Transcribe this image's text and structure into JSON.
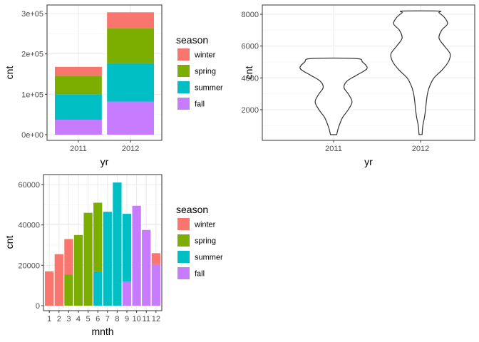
{
  "colors": {
    "winter": "#F8766D",
    "spring": "#7CAE00",
    "summer": "#00BFC4",
    "fall": "#C77CFF"
  },
  "chart_data": [
    {
      "type": "bar",
      "stacked": true,
      "xlabel": "yr",
      "ylabel": "cnt",
      "categories": [
        "2011",
        "2012"
      ],
      "ylim": [
        0,
        325000
      ],
      "yticks": [
        0,
        100000,
        200000,
        300000
      ],
      "ytick_labels": [
        "0e+00",
        "1e+05",
        "2e+05",
        "3e+05"
      ],
      "legend": {
        "title": "season",
        "position": "right"
      },
      "series": [
        {
          "name": "winter",
          "values": [
            22000,
            40000
          ]
        },
        {
          "name": "spring",
          "values": [
            46000,
            86000
          ]
        },
        {
          "name": "summer",
          "values": [
            63000,
            95000
          ]
        },
        {
          "name": "fall",
          "values": [
            37000,
            82000
          ]
        }
      ],
      "grid": true
    },
    {
      "type": "violin",
      "xlabel": "yr",
      "ylabel": "cnt",
      "categories": [
        "2011",
        "2012"
      ],
      "ylim": [
        -300,
        8700
      ],
      "yticks": [
        2000,
        4000,
        6000,
        8000
      ],
      "ytick_labels": [
        "2000",
        "4000",
        "6000",
        "8000"
      ],
      "violins": [
        {
          "category": "2011",
          "profile": [
            [
              431,
              0.08
            ],
            [
              900,
              0.13
            ],
            [
              1500,
              0.23
            ],
            [
              2000,
              0.38
            ],
            [
              2500,
              0.48
            ],
            [
              3000,
              0.38
            ],
            [
              3400,
              0.27
            ],
            [
              3800,
              0.35
            ],
            [
              4200,
              0.62
            ],
            [
              4600,
              0.87
            ],
            [
              5000,
              0.75
            ],
            [
              5220,
              0.58
            ]
          ]
        },
        {
          "category": "2012",
          "profile": [
            [
              441,
              0.04
            ],
            [
              1000,
              0.06
            ],
            [
              1500,
              0.1
            ],
            [
              2000,
              0.13
            ],
            [
              2500,
              0.15
            ],
            [
              3000,
              0.18
            ],
            [
              3500,
              0.24
            ],
            [
              4000,
              0.35
            ],
            [
              4500,
              0.56
            ],
            [
              5000,
              0.72
            ],
            [
              5500,
              0.77
            ],
            [
              6000,
              0.62
            ],
            [
              6500,
              0.48
            ],
            [
              7000,
              0.55
            ],
            [
              7400,
              0.7
            ],
            [
              7800,
              0.62
            ],
            [
              8100,
              0.48
            ],
            [
              8200,
              0.46
            ]
          ]
        }
      ],
      "grid": true
    },
    {
      "type": "bar",
      "xlabel": "mnth",
      "ylabel": "cnt",
      "categories": [
        "1",
        "2",
        "3",
        "4",
        "5",
        "6",
        "7",
        "8",
        "9",
        "10",
        "11",
        "12"
      ],
      "ylim": [
        -2500,
        64000
      ],
      "yticks": [
        0,
        20000,
        40000,
        60000
      ],
      "ytick_labels": [
        "0",
        "20000",
        "40000",
        "60000"
      ],
      "legend": {
        "title": "season",
        "position": "right"
      },
      "series": [
        {
          "name": "winter",
          "values": [
            17000,
            25500,
            17500,
            0,
            0,
            0,
            0,
            0,
            0,
            0,
            0,
            5500
          ]
        },
        {
          "name": "spring",
          "values": [
            0,
            0,
            15500,
            35000,
            46000,
            34000,
            0,
            0,
            0,
            0,
            0,
            0
          ]
        },
        {
          "name": "summer",
          "values": [
            0,
            0,
            0,
            0,
            0,
            17000,
            46500,
            61000,
            33500,
            0,
            0,
            0
          ]
        },
        {
          "name": "fall",
          "values": [
            0,
            0,
            0,
            0,
            0,
            0,
            0,
            0,
            12000,
            49500,
            37500,
            20500
          ]
        }
      ],
      "grid": true
    }
  ]
}
